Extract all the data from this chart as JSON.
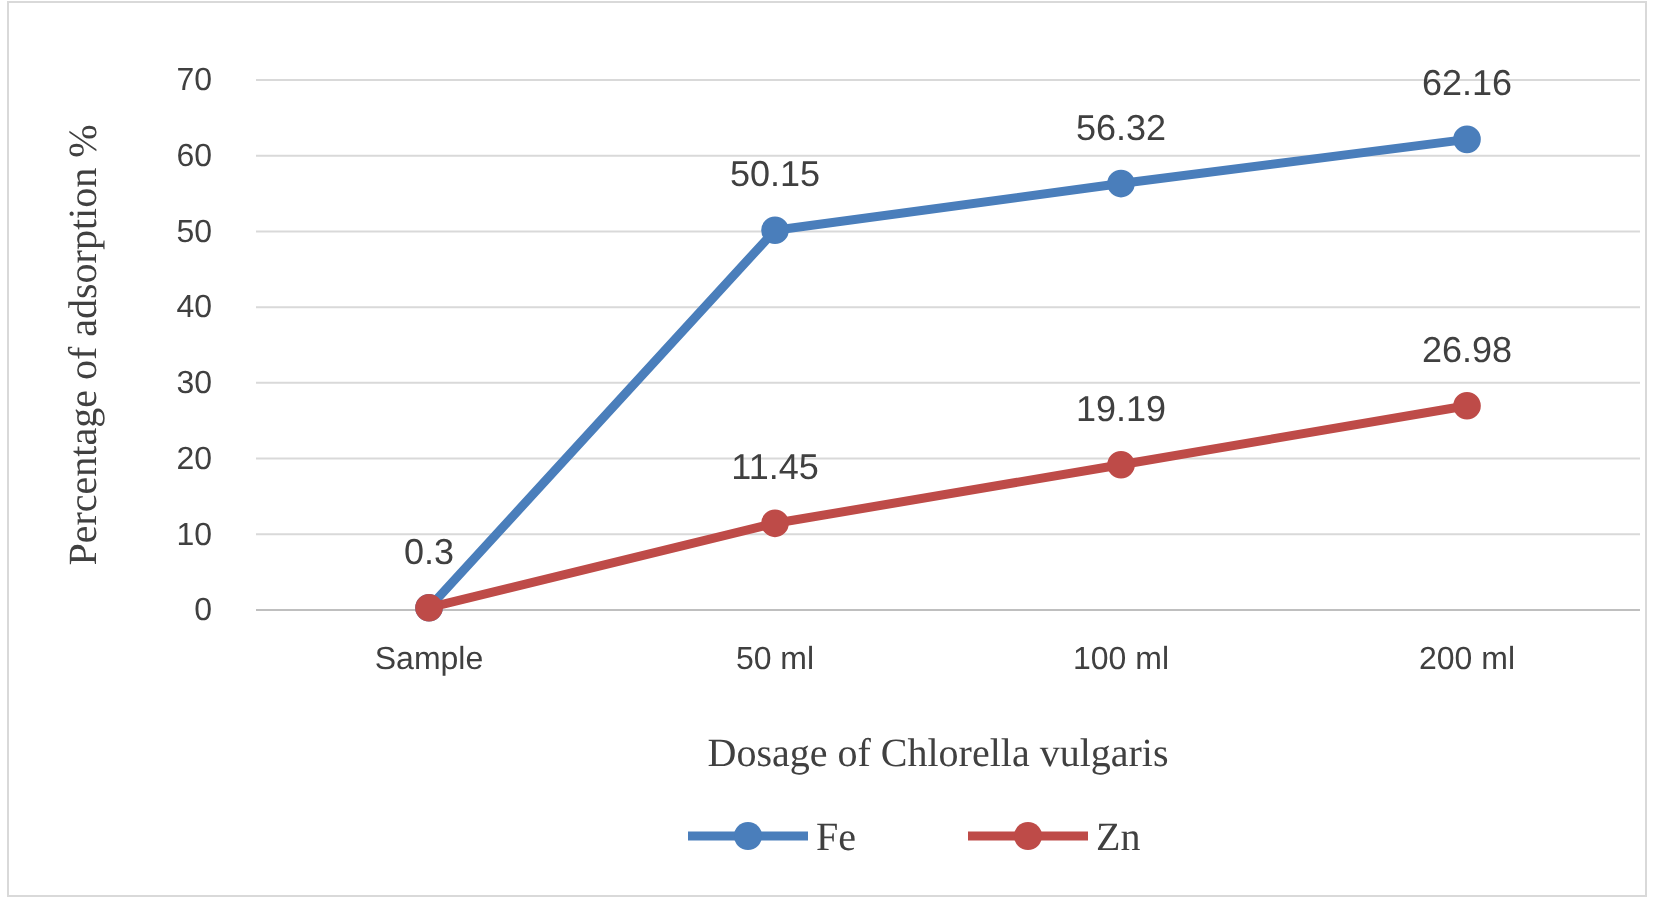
{
  "chart_data": {
    "type": "line",
    "xlabel": "Dosage of Chlorella vulgaris",
    "ylabel": "Percentage of adsorption %",
    "categories": [
      "Sample",
      "50 ml",
      "100 ml",
      "200 ml"
    ],
    "series": [
      {
        "name": "Fe",
        "color": "#4a7ebb",
        "values": [
          0.3,
          50.15,
          56.32,
          62.16
        ],
        "value_labels": [
          "0.3",
          "50.15",
          "56.32",
          "62.16"
        ]
      },
      {
        "name": "Zn",
        "color": "#be4b48",
        "values": [
          0.3,
          11.45,
          19.19,
          26.98
        ],
        "value_labels": [
          null,
          "11.45",
          "19.19",
          "26.98"
        ]
      }
    ],
    "ylim": [
      0,
      70
    ],
    "yticks": [
      0,
      10,
      20,
      30,
      40,
      50,
      60,
      70
    ],
    "grid": "y",
    "legend": "bottom",
    "marker": "circle",
    "line_style": "solid"
  }
}
